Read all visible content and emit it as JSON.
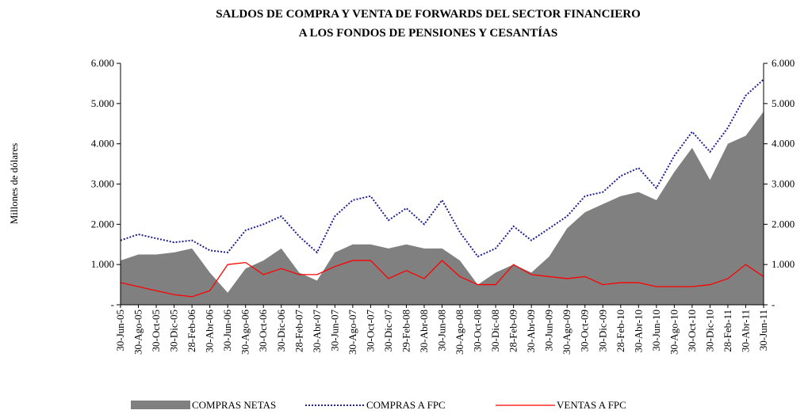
{
  "chart_data": {
    "type": "area-line",
    "title": "SALDOS DE COMPRA Y VENTA DE FORWARDS DEL SECTOR FINANCIERO",
    "subtitle": "A LOS FONDOS DE PENSIONES Y CESANTÍAS",
    "y_label": "Millones de dólares",
    "categories": [
      "30-Jun-05",
      "30-Ago-05",
      "30-Oct-05",
      "30-Dic-05",
      "28-Feb-06",
      "30-Abr-06",
      "30-Jun-06",
      "30-Ago-06",
      "30-Oct-06",
      "30-Dic-06",
      "28-Feb-07",
      "30-Abr-07",
      "30-Jun-07",
      "30-Ago-07",
      "30-Oct-07",
      "30-Dic-07",
      "29-Feb-08",
      "30-Abr-08",
      "30-Jun-08",
      "30-Ago-08",
      "30-Oct-08",
      "30-Dic-08",
      "28-Feb-09",
      "30-Abr-09",
      "30-Jun-09",
      "30-Ago-09",
      "30-Oct-09",
      "30-Dic-09",
      "28-Feb-10",
      "30-Abr-10",
      "30-Jun-10",
      "30-Ago-10",
      "30-Oct-10",
      "30-Dic-10",
      "28-Feb-11",
      "30-Abr-11",
      "30-Jun-11"
    ],
    "series": [
      {
        "name": "COMPRAS NETAS",
        "kind": "area",
        "color": "#808080",
        "values": [
          1100,
          1250,
          1250,
          1300,
          1400,
          800,
          300,
          900,
          1100,
          1400,
          800,
          600,
          1300,
          1500,
          1500,
          1400,
          1500,
          1400,
          1400,
          1100,
          500,
          800,
          1000,
          800,
          1200,
          1900,
          2300,
          2500,
          2700,
          2800,
          2600,
          3300,
          3900,
          3100,
          4000,
          4200,
          4800
        ]
      },
      {
        "name": "COMPRAS A FPC",
        "kind": "dotted",
        "color": "#1f1f8f",
        "values": [
          1600,
          1750,
          1650,
          1550,
          1600,
          1350,
          1300,
          1850,
          2000,
          2200,
          1700,
          1300,
          2200,
          2600,
          2700,
          2100,
          2400,
          2000,
          2600,
          1800,
          1200,
          1400,
          1950,
          1600,
          1900,
          2200,
          2700,
          2800,
          3200,
          3400,
          2900,
          3700,
          4300,
          3800,
          4400,
          5200,
          5600
        ]
      },
      {
        "name": "VENTAS A FPC",
        "kind": "line",
        "color": "#ff0000",
        "values": [
          550,
          450,
          350,
          250,
          200,
          350,
          1000,
          1050,
          750,
          900,
          750,
          750,
          950,
          1100,
          1100,
          650,
          850,
          650,
          1100,
          700,
          500,
          500,
          1000,
          750,
          700,
          650,
          700,
          500,
          550,
          550,
          450,
          450,
          450,
          500,
          650,
          1000,
          700
        ]
      }
    ],
    "ylim": [
      0,
      6000
    ],
    "yticks": [
      {
        "value": 0,
        "label": "-"
      },
      {
        "value": 1000,
        "label": "1.000"
      },
      {
        "value": 2000,
        "label": "2.000"
      },
      {
        "value": 3000,
        "label": "3.000"
      },
      {
        "value": 4000,
        "label": "4.000"
      },
      {
        "value": 5000,
        "label": "5.000"
      },
      {
        "value": 6000,
        "label": "6.000"
      }
    ],
    "y2lim": [
      0,
      6000
    ],
    "y2ticks": [
      {
        "value": 0,
        "label": "-"
      },
      {
        "value": 1000,
        "label": "1.000"
      },
      {
        "value": 2000,
        "label": "2.000"
      },
      {
        "value": 3000,
        "label": "3.000"
      },
      {
        "value": 4000,
        "label": "4.000"
      },
      {
        "value": 5000,
        "label": "5.000"
      },
      {
        "value": 6000,
        "label": "6.000"
      }
    ],
    "legend": "bottom"
  }
}
